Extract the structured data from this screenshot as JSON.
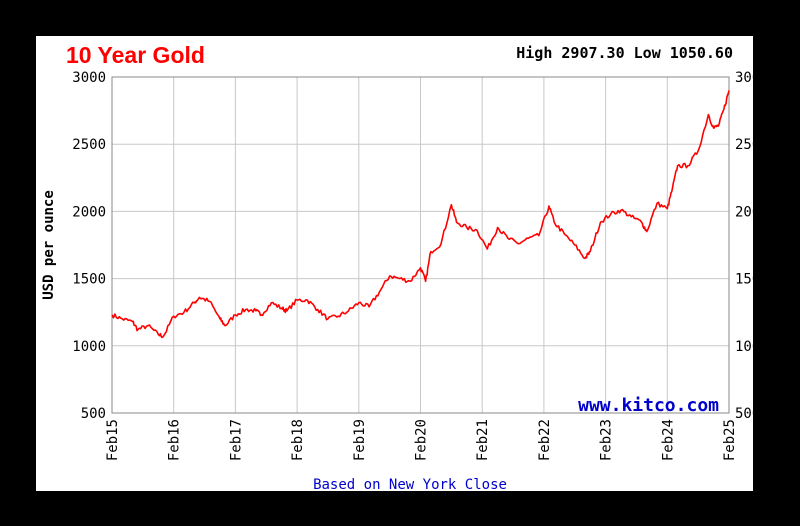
{
  "chart_data": {
    "type": "line",
    "title": "10 Year Gold",
    "high_low_text": "High 2907.30 Low 1050.60",
    "ylabel": "USD per ounce",
    "watermark": "www.kitco.com",
    "footnote": "Based on New York Close",
    "ylim": [
      500,
      3000
    ],
    "yticks": [
      500,
      1000,
      1500,
      2000,
      2500,
      3000
    ],
    "grid": true,
    "x_start": "Feb15",
    "x_end": "Feb25",
    "x_tick_labels": [
      "Feb15",
      "Feb16",
      "Feb17",
      "Feb18",
      "Feb19",
      "Feb20",
      "Feb21",
      "Feb22",
      "Feb23",
      "Feb24",
      "Feb25"
    ],
    "series": [
      {
        "color": "#ff0000",
        "points": [
          {
            "x": "2015-02",
            "y": 1230
          },
          {
            "x": "2015-04",
            "y": 1200
          },
          {
            "x": "2015-06",
            "y": 1180
          },
          {
            "x": "2015-07",
            "y": 1120
          },
          {
            "x": "2015-09",
            "y": 1150
          },
          {
            "x": "2015-11",
            "y": 1085
          },
          {
            "x": "2015-12",
            "y": 1070
          },
          {
            "x": "2016-02",
            "y": 1220
          },
          {
            "x": "2016-04",
            "y": 1250
          },
          {
            "x": "2016-06",
            "y": 1320
          },
          {
            "x": "2016-07",
            "y": 1360
          },
          {
            "x": "2016-09",
            "y": 1330
          },
          {
            "x": "2016-11",
            "y": 1200
          },
          {
            "x": "2016-12",
            "y": 1150
          },
          {
            "x": "2017-02",
            "y": 1230
          },
          {
            "x": "2017-04",
            "y": 1270
          },
          {
            "x": "2017-06",
            "y": 1260
          },
          {
            "x": "2017-07",
            "y": 1230
          },
          {
            "x": "2017-09",
            "y": 1320
          },
          {
            "x": "2017-11",
            "y": 1280
          },
          {
            "x": "2017-12",
            "y": 1260
          },
          {
            "x": "2018-02",
            "y": 1340
          },
          {
            "x": "2018-04",
            "y": 1340
          },
          {
            "x": "2018-06",
            "y": 1270
          },
          {
            "x": "2018-08",
            "y": 1200
          },
          {
            "x": "2018-10",
            "y": 1220
          },
          {
            "x": "2018-12",
            "y": 1260
          },
          {
            "x": "2019-02",
            "y": 1320
          },
          {
            "x": "2019-04",
            "y": 1290
          },
          {
            "x": "2019-06",
            "y": 1400
          },
          {
            "x": "2019-08",
            "y": 1520
          },
          {
            "x": "2019-10",
            "y": 1500
          },
          {
            "x": "2019-12",
            "y": 1480
          },
          {
            "x": "2020-02",
            "y": 1580
          },
          {
            "x": "2020-03",
            "y": 1480
          },
          {
            "x": "2020-04",
            "y": 1700
          },
          {
            "x": "2020-06",
            "y": 1760
          },
          {
            "x": "2020-08",
            "y": 2050
          },
          {
            "x": "2020-09",
            "y": 1920
          },
          {
            "x": "2020-11",
            "y": 1880
          },
          {
            "x": "2021-01",
            "y": 1860
          },
          {
            "x": "2021-03",
            "y": 1720
          },
          {
            "x": "2021-05",
            "y": 1880
          },
          {
            "x": "2021-07",
            "y": 1800
          },
          {
            "x": "2021-09",
            "y": 1760
          },
          {
            "x": "2021-11",
            "y": 1800
          },
          {
            "x": "2022-01",
            "y": 1820
          },
          {
            "x": "2022-03",
            "y": 2040
          },
          {
            "x": "2022-04",
            "y": 1920
          },
          {
            "x": "2022-06",
            "y": 1830
          },
          {
            "x": "2022-08",
            "y": 1750
          },
          {
            "x": "2022-10",
            "y": 1650
          },
          {
            "x": "2022-11",
            "y": 1700
          },
          {
            "x": "2023-01",
            "y": 1920
          },
          {
            "x": "2023-03",
            "y": 1980
          },
          {
            "x": "2023-05",
            "y": 2010
          },
          {
            "x": "2023-07",
            "y": 1960
          },
          {
            "x": "2023-09",
            "y": 1920
          },
          {
            "x": "2023-10",
            "y": 1850
          },
          {
            "x": "2023-12",
            "y": 2060
          },
          {
            "x": "2024-02",
            "y": 2020
          },
          {
            "x": "2024-03",
            "y": 2170
          },
          {
            "x": "2024-04",
            "y": 2340
          },
          {
            "x": "2024-06",
            "y": 2340
          },
          {
            "x": "2024-08",
            "y": 2450
          },
          {
            "x": "2024-10",
            "y": 2720
          },
          {
            "x": "2024-11",
            "y": 2620
          },
          {
            "x": "2024-12",
            "y": 2640
          },
          {
            "x": "2025-01",
            "y": 2760
          },
          {
            "x": "2025-02",
            "y": 2900
          }
        ]
      }
    ]
  }
}
